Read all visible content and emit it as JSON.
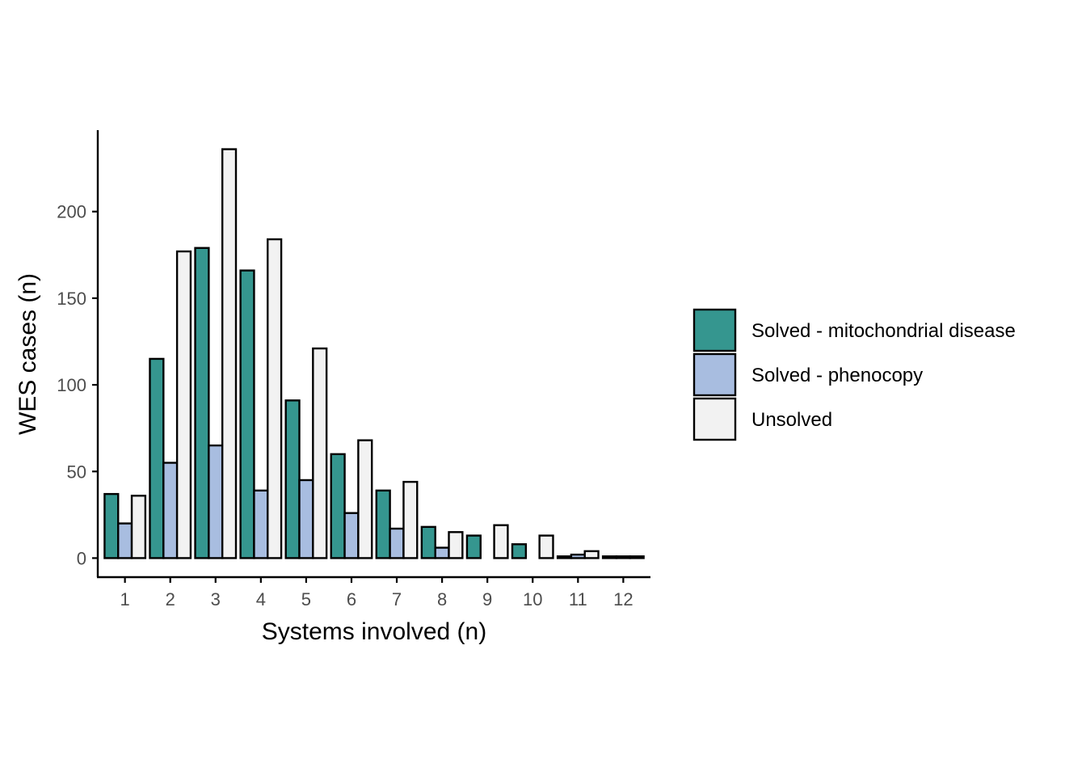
{
  "chart_data": {
    "type": "bar",
    "xlabel": "Systems involved (n)",
    "ylabel": "WES cases (n)",
    "categories": [
      "1",
      "2",
      "3",
      "4",
      "5",
      "6",
      "7",
      "8",
      "9",
      "10",
      "11",
      "12"
    ],
    "series": [
      {
        "name": "Solved - mitochondrial disease",
        "color": "#35968f",
        "values": [
          37,
          115,
          179,
          166,
          91,
          60,
          39,
          18,
          13,
          8,
          1,
          1
        ]
      },
      {
        "name": "Solved - phenocopy",
        "color": "#a8bde0",
        "values": [
          20,
          55,
          65,
          39,
          45,
          26,
          17,
          6,
          0,
          0,
          2,
          1
        ]
      },
      {
        "name": "Unsolved",
        "color": "#f2f2f2",
        "values": [
          36,
          177,
          236,
          184,
          121,
          68,
          44,
          15,
          19,
          13,
          4,
          1
        ]
      }
    ],
    "yticks": [
      0,
      50,
      100,
      150,
      200
    ],
    "ylim": [
      -11,
      247
    ],
    "xlim": [
      0.4,
      12.6
    ],
    "grid": false,
    "legend_position": "right"
  }
}
